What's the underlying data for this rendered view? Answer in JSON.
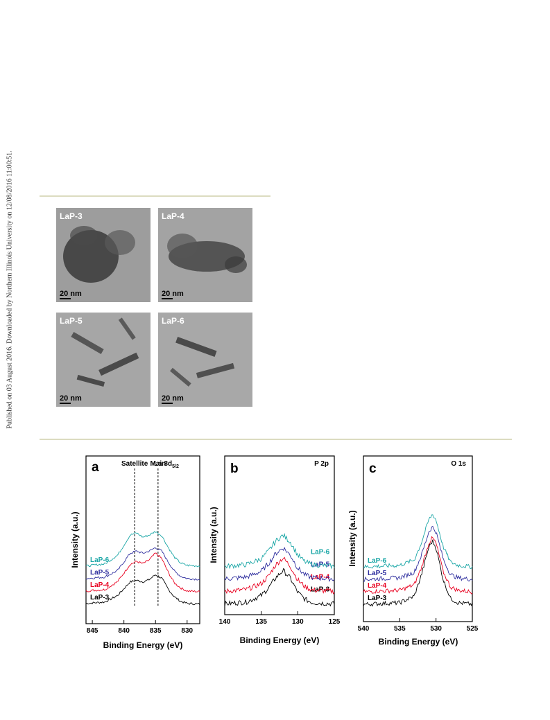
{
  "watermark": "Published on 03 August 2016. Downloaded by Northern Illinois University on 12/08/2016 11:00:51.",
  "tem": {
    "scale": "20 nm",
    "panels": [
      {
        "label": "LaP-3"
      },
      {
        "label": "LaP-4"
      },
      {
        "label": "LaP-5"
      },
      {
        "label": "LaP-6"
      }
    ]
  },
  "colors": {
    "LaP-3": "#000000",
    "LaP-4": "#e8001f",
    "LaP-5": "#2d2d9e",
    "LaP-6": "#1aa6a6"
  },
  "chart_data": [
    {
      "type": "line",
      "panel": "a",
      "title": "La 3d5/2",
      "title_main": "La 3d",
      "title_sub": "5/2",
      "xlabel": "Binding Energy (eV)",
      "ylabel": "Intensity (a.u.)",
      "xlim": [
        846,
        828
      ],
      "xticks": [
        845,
        840,
        835,
        830
      ],
      "annotations": [
        {
          "text": "Satellite",
          "x": 838.3
        },
        {
          "text": "Main",
          "x": 834.6
        }
      ],
      "series": [
        {
          "name": "LaP-3",
          "offset": 0,
          "x": [
            846,
            843,
            841,
            839,
            838,
            837,
            836,
            835,
            834,
            833,
            832,
            831,
            830,
            828
          ],
          "values": [
            1.0,
            1.4,
            3.2,
            7.0,
            7.4,
            7.0,
            7.6,
            9.0,
            8.0,
            5.0,
            2.8,
            1.6,
            1.0,
            0.8
          ]
        },
        {
          "name": "LaP-4",
          "offset": 18,
          "x": [
            846,
            843,
            841,
            839,
            838,
            837,
            836,
            835,
            834,
            833,
            832,
            831,
            830,
            828
          ],
          "values": [
            1.0,
            1.4,
            3.6,
            8.4,
            9.2,
            8.6,
            9.6,
            11.5,
            10.0,
            6.2,
            3.2,
            1.8,
            1.0,
            0.8
          ]
        },
        {
          "name": "LaP-5",
          "offset": 36,
          "x": [
            846,
            843,
            841,
            839,
            838,
            837,
            836,
            835,
            834,
            833,
            832,
            831,
            830,
            828
          ],
          "values": [
            1.0,
            1.4,
            3.2,
            8.0,
            8.6,
            8.0,
            8.6,
            9.6,
            8.6,
            5.6,
            3.0,
            1.6,
            1.0,
            0.8
          ]
        },
        {
          "name": "LaP-6",
          "offset": 54,
          "x": [
            846,
            843,
            841,
            839,
            838,
            837,
            836,
            835,
            834,
            833,
            832,
            831,
            830,
            828
          ],
          "values": [
            1.0,
            1.6,
            4.0,
            9.6,
            10.2,
            9.0,
            9.6,
            10.6,
            9.4,
            6.2,
            3.4,
            1.8,
            1.2,
            1.0
          ]
        }
      ]
    },
    {
      "type": "line",
      "panel": "b",
      "title": "P 2p",
      "xlabel": "Binding Energy (eV)",
      "ylabel": "Intensity (a.u.)",
      "xlim": [
        140,
        125
      ],
      "xticks": [
        140,
        135,
        130,
        125
      ],
      "series": [
        {
          "name": "LaP-3",
          "offset": 0,
          "x": [
            140,
            137,
            135,
            134,
            133,
            132,
            131,
            130,
            129,
            128,
            125
          ],
          "values": [
            1.0,
            1.6,
            3.6,
            6.0,
            9.2,
            11.5,
            9.0,
            4.6,
            2.4,
            1.4,
            1.0
          ]
        },
        {
          "name": "LaP-4",
          "offset": 18,
          "x": [
            140,
            137,
            135,
            134,
            133,
            132,
            131,
            130,
            129,
            128,
            125
          ],
          "values": [
            1.0,
            1.6,
            3.4,
            5.8,
            9.4,
            11.5,
            8.8,
            4.6,
            2.4,
            1.4,
            1.0
          ]
        },
        {
          "name": "LaP-5",
          "offset": 36,
          "x": [
            140,
            137,
            135,
            134,
            133,
            132,
            131,
            130,
            129,
            128,
            125
          ],
          "values": [
            1.0,
            1.6,
            3.4,
            5.8,
            9.0,
            10.8,
            8.4,
            4.4,
            2.2,
            1.4,
            1.0
          ]
        },
        {
          "name": "LaP-6",
          "offset": 54,
          "x": [
            140,
            137,
            135,
            134,
            133,
            132,
            131,
            130,
            129,
            128,
            125
          ],
          "values": [
            1.0,
            1.6,
            3.4,
            5.8,
            9.0,
            10.8,
            8.6,
            4.6,
            2.4,
            1.6,
            1.0
          ]
        }
      ]
    },
    {
      "type": "line",
      "panel": "c",
      "title": "O 1s",
      "xlabel": "Binding Energy (eV)",
      "ylabel": "Intensity (a.u.)",
      "xlim": [
        540,
        525
      ],
      "xticks": [
        540,
        535,
        530,
        525
      ],
      "series": [
        {
          "name": "LaP-3",
          "offset": 0,
          "x": [
            540,
            535,
            533,
            532,
            531,
            530.5,
            530,
            529,
            528,
            527,
            525
          ],
          "values": [
            1.0,
            1.6,
            4.0,
            12.0,
            22.0,
            24.5,
            22.0,
            10.0,
            3.2,
            1.6,
            1.0
          ]
        },
        {
          "name": "LaP-4",
          "offset": 18,
          "x": [
            540,
            535,
            533,
            532,
            531,
            530.5,
            530,
            529,
            528,
            527,
            525
          ],
          "values": [
            1.0,
            1.6,
            3.6,
            10.0,
            19.0,
            21.0,
            19.0,
            8.4,
            2.8,
            1.6,
            1.0
          ]
        },
        {
          "name": "LaP-5",
          "offset": 36,
          "x": [
            540,
            535,
            533,
            532,
            531,
            530.5,
            530,
            529,
            528,
            527,
            525
          ],
          "values": [
            1.0,
            1.6,
            3.6,
            10.0,
            18.6,
            20.5,
            18.6,
            8.4,
            2.8,
            1.6,
            1.0
          ]
        },
        {
          "name": "LaP-6",
          "offset": 54,
          "x": [
            540,
            535,
            533,
            532,
            531,
            530.5,
            530,
            529,
            528,
            527,
            525
          ],
          "values": [
            1.0,
            1.6,
            3.6,
            10.0,
            18.4,
            20.5,
            18.4,
            8.4,
            2.8,
            1.6,
            1.0
          ]
        }
      ]
    }
  ]
}
